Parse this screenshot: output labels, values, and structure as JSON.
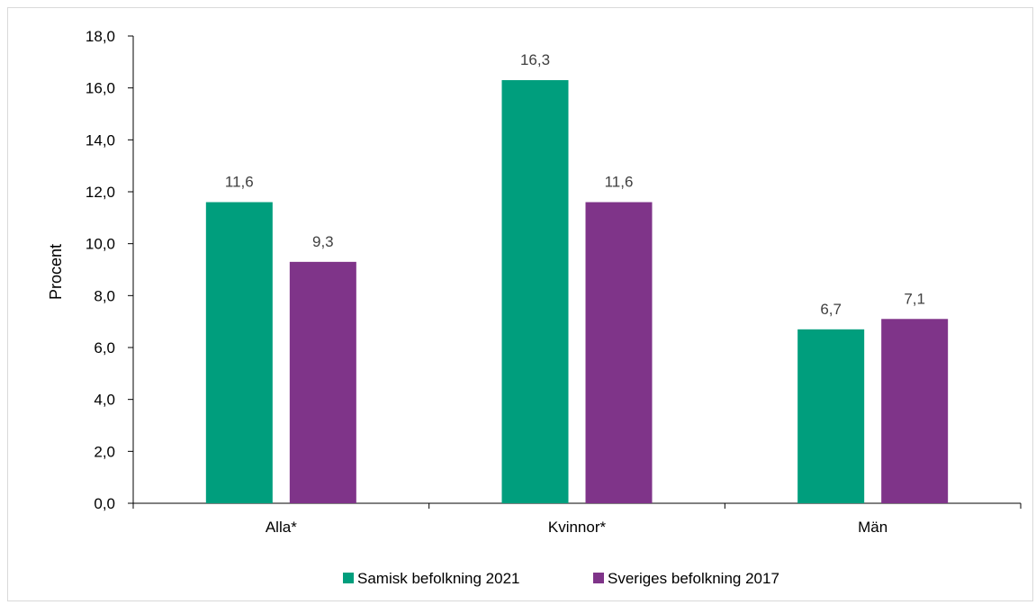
{
  "chart_data": {
    "type": "bar",
    "title": "",
    "xlabel": "",
    "ylabel": "Procent",
    "ylim": [
      0,
      18
    ],
    "yticks": [
      "0,0",
      "2,0",
      "4,0",
      "6,0",
      "8,0",
      "10,0",
      "12,0",
      "14,0",
      "16,0",
      "18,0"
    ],
    "categories": [
      "Alla*",
      "Kvinnor*",
      "Män"
    ],
    "series": [
      {
        "name": "Samisk befolkning 2021",
        "color": "#009E7D",
        "values": [
          11.6,
          16.3,
          6.7
        ],
        "labels": [
          "11,6",
          "16,3",
          "6,7"
        ]
      },
      {
        "name": "Sveriges befolkning 2017",
        "color": "#7F3489",
        "values": [
          9.3,
          11.6,
          7.1
        ],
        "labels": [
          "9,3",
          "11,6",
          "7,1"
        ]
      }
    ],
    "grid": false,
    "legend_position": "bottom"
  }
}
